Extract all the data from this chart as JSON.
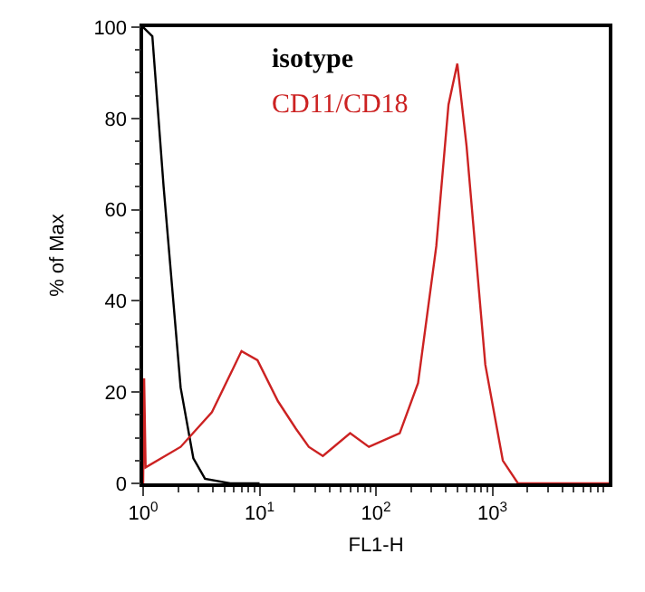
{
  "chart_data": {
    "type": "line",
    "xlabel": "FL1-H",
    "ylabel": "% of Max",
    "log": "x",
    "xlim": [
      1,
      10000
    ],
    "xticks": [
      {
        "value": 1,
        "label": "10$^{0}$"
      },
      {
        "value": 10,
        "label": "10$^{1}$"
      },
      {
        "value": 100,
        "label": "10$^{2}$"
      },
      {
        "value": 1000,
        "label": "10$^{3}$"
      }
    ],
    "ylim": [
      0,
      100
    ],
    "yticks": [
      0,
      20,
      40,
      60,
      80,
      100
    ],
    "grid": false,
    "marker": "none",
    "line_style": "solid",
    "series": [
      {
        "name": "isotype",
        "color": "#000000",
        "x": [
          1,
          1.2,
          1.5,
          2.1,
          2.7,
          3.4,
          5.6,
          10
        ],
        "values": [
          100,
          98,
          65,
          21,
          5.5,
          1,
          0,
          0
        ]
      },
      {
        "name": "CD11/CD18",
        "color": "#cc2222",
        "x": [
          1,
          1.02,
          1.05,
          2.1,
          3.9,
          7,
          9.6,
          14.4,
          20.5,
          26.5,
          35,
          60,
          87,
          160,
          230,
          330,
          420,
          500,
          600,
          870,
          1230,
          1660,
          10000
        ],
        "values": [
          0,
          23,
          3.5,
          8,
          15.6,
          29,
          27,
          18,
          12,
          8,
          6,
          11,
          8,
          11,
          22,
          52,
          83,
          92,
          74,
          26,
          5,
          0,
          0
        ]
      }
    ]
  }
}
